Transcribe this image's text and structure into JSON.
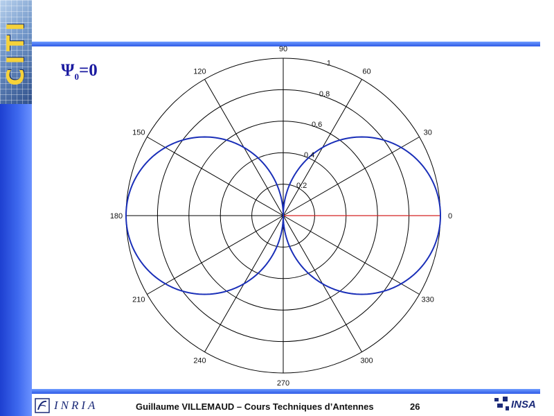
{
  "slide": {
    "sidebar_logo": "CITI",
    "psi_symbol": "Ψ",
    "psi_subscript": "0",
    "psi_value": "=0",
    "footer_text": "Guillaume VILLEMAUD – Cours Techniques d’Antennes",
    "page_number": "26",
    "inria_logo": "INRIA",
    "insa_logo": "INSA"
  },
  "chart_data": {
    "type": "line",
    "coordinate_system": "polar",
    "title": "",
    "angle_labels": [
      "0",
      "30",
      "60",
      "90",
      "120",
      "150",
      "180",
      "210",
      "240",
      "270",
      "300",
      "330"
    ],
    "radial_ticks": [
      0.2,
      0.4,
      0.6,
      0.8,
      1
    ],
    "radial_tick_labels": [
      "0.2",
      "0.4",
      "0.6",
      "0.8",
      "1"
    ],
    "rlim": [
      0,
      1
    ],
    "grid": true,
    "series": [
      {
        "formula": "r = |cos(theta)|",
        "color": "#1a2fb8",
        "theta_deg": [
          0,
          10,
          20,
          30,
          40,
          50,
          60,
          70,
          80,
          90,
          100,
          110,
          120,
          130,
          140,
          150,
          160,
          170,
          180,
          190,
          200,
          210,
          220,
          230,
          240,
          250,
          260,
          270,
          280,
          290,
          300,
          310,
          320,
          330,
          340,
          350,
          360
        ],
        "r": [
          1,
          0.985,
          0.94,
          0.866,
          0.766,
          0.643,
          0.5,
          0.342,
          0.174,
          0,
          0.174,
          0.342,
          0.5,
          0.643,
          0.766,
          0.866,
          0.94,
          0.985,
          1,
          0.985,
          0.94,
          0.866,
          0.766,
          0.643,
          0.5,
          0.342,
          0.174,
          0,
          0.174,
          0.342,
          0.5,
          0.643,
          0.766,
          0.866,
          0.94,
          0.985,
          1
        ]
      }
    ],
    "reference_line": {
      "theta_deg": 0,
      "r": [
        0,
        1
      ],
      "color": "#d42020"
    },
    "colors": {
      "grid": "#000000",
      "pattern": "#1a2fb8",
      "reference": "#d42020"
    }
  }
}
